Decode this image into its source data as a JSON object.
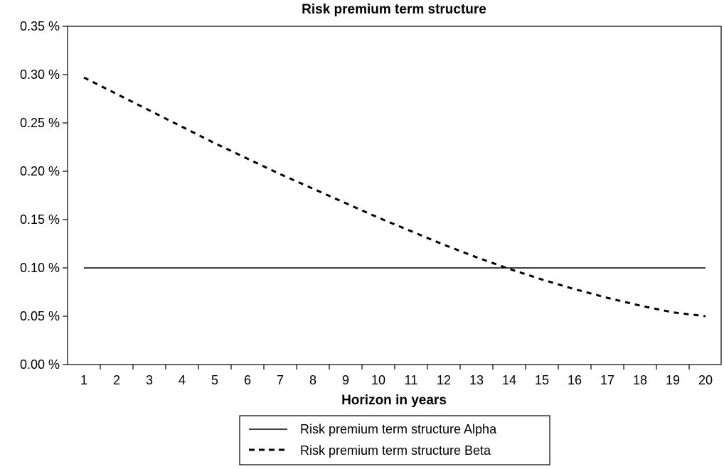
{
  "chart_data": {
    "type": "line",
    "title": "Risk premium term structure",
    "xlabel": "Horizon in years",
    "ylabel": "",
    "x": [
      1,
      2,
      3,
      4,
      5,
      6,
      7,
      8,
      9,
      10,
      11,
      12,
      13,
      14,
      15,
      16,
      17,
      18,
      19,
      20
    ],
    "x_tick_labels": [
      "1",
      "2",
      "3",
      "4",
      "5",
      "6",
      "7",
      "8",
      "9",
      "10",
      "11",
      "12",
      "13",
      "14",
      "15",
      "16",
      "17",
      "18",
      "19",
      "20"
    ],
    "ylim": [
      0,
      0.35
    ],
    "y_ticks": [
      0,
      0.05,
      0.1,
      0.15,
      0.2,
      0.25,
      0.3,
      0.35
    ],
    "y_tick_labels": [
      "0.00 %",
      "0.05 %",
      "0.10 %",
      "0.15 %",
      "0.20 %",
      "0.25 %",
      "0.30 %",
      "0.35 %"
    ],
    "y_unit": "%",
    "grid": false,
    "legend_placement": "bottom",
    "series": [
      {
        "name": "Risk premium term structure Alpha",
        "line_style": "solid",
        "color": "#000000",
        "values": [
          0.1,
          0.1,
          0.1,
          0.1,
          0.1,
          0.1,
          0.1,
          0.1,
          0.1,
          0.1,
          0.1,
          0.1,
          0.1,
          0.1,
          0.1,
          0.1,
          0.1,
          0.1,
          0.1,
          0.1
        ]
      },
      {
        "name": "Risk premium term structure Beta",
        "line_style": "dashed",
        "color": "#000000",
        "values": [
          0.297,
          0.28,
          0.263,
          0.246,
          0.229,
          0.213,
          0.197,
          0.182,
          0.167,
          0.152,
          0.138,
          0.124,
          0.111,
          0.099,
          0.088,
          0.078,
          0.069,
          0.061,
          0.054,
          0.05
        ]
      }
    ]
  }
}
